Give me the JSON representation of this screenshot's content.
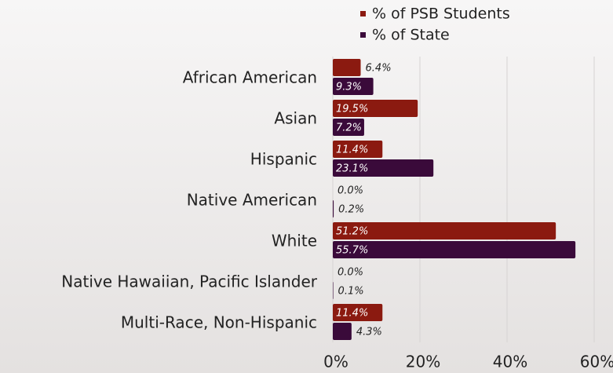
{
  "chart_data": {
    "type": "barh",
    "categories": [
      "African American",
      "Asian",
      "Hispanic",
      "Native American",
      "White",
      "Native Hawaiian, Pacific Islander",
      "Multi-Race, Non-Hispanic"
    ],
    "series": [
      {
        "name": "% of PSB Students",
        "color": "#8b1a10",
        "values": [
          6.4,
          19.5,
          11.4,
          0.0,
          51.2,
          0.0,
          11.4
        ],
        "value_labels": [
          "6.4%",
          "19.5%",
          "11.4%",
          "0.0%",
          "51.2%",
          "0.0%",
          "11.4%"
        ]
      },
      {
        "name": "% of State",
        "color": "#3a0a3a",
        "values": [
          9.3,
          7.2,
          23.1,
          0.2,
          55.7,
          0.1,
          4.3
        ],
        "value_labels": [
          "9.3%",
          "7.2%",
          "23.1%",
          "0.2%",
          "55.7%",
          "0.1%",
          "4.3%"
        ]
      }
    ],
    "xlim": [
      0,
      60
    ],
    "xticks": [
      {
        "value": 0,
        "label": "0%"
      },
      {
        "value": 20,
        "label": "20%"
      },
      {
        "value": 40,
        "label": "40%"
      },
      {
        "value": 60,
        "label": "60%"
      }
    ],
    "grid": true
  }
}
